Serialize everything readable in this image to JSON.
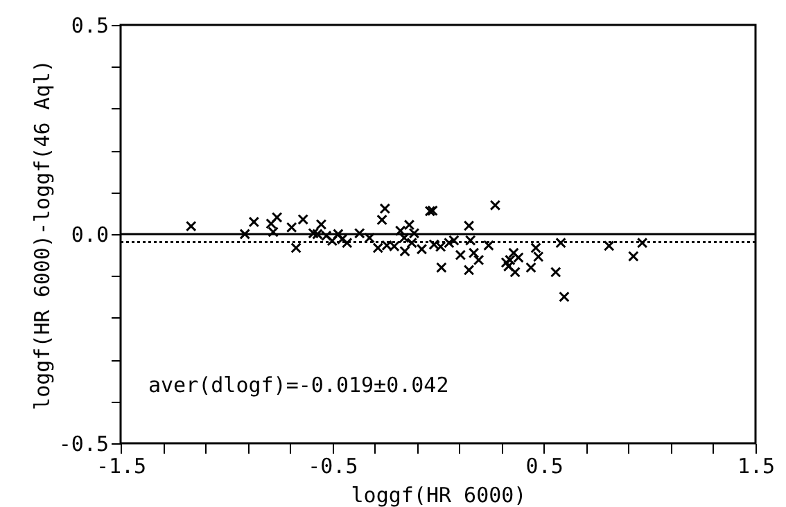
{
  "chart_data": {
    "type": "scatter",
    "xlabel": "loggf(HR 6000)",
    "ylabel": "loggf(HR 6000)-loggf(46 Aql)",
    "x": [
      -1.167,
      -0.913,
      -0.87,
      -0.789,
      -0.779,
      -0.761,
      -0.692,
      -0.671,
      -0.638,
      -0.589,
      -0.552,
      -0.57,
      -0.528,
      -0.5,
      -0.472,
      -0.453,
      -0.43,
      -0.371,
      -0.324,
      -0.265,
      -0.251,
      -0.284,
      -0.242,
      -0.207,
      -0.178,
      -0.16,
      -0.157,
      -0.136,
      -0.124,
      -0.113,
      -0.077,
      -0.038,
      -0.026,
      -0.019,
      0.012,
      0.016,
      0.052,
      0.075,
      0.106,
      0.146,
      0.146,
      0.153,
      0.169,
      0.192,
      0.239,
      0.27,
      0.322,
      0.34,
      0.333,
      0.357,
      0.364,
      0.38,
      0.439,
      0.462,
      0.474,
      0.556,
      0.58,
      0.596,
      0.808,
      0.923,
      0.965
    ],
    "series": [
      {
        "color": "#000000",
        "values": [
          0.019,
          0.0,
          0.029,
          0.025,
          0.005,
          0.04,
          0.016,
          -0.033,
          0.035,
          0.002,
          0.023,
          0.0,
          -0.004,
          -0.016,
          0.0,
          -0.012,
          -0.021,
          0.002,
          -0.009,
          0.034,
          0.061,
          -0.033,
          -0.027,
          -0.029,
          0.008,
          -0.009,
          -0.041,
          0.022,
          -0.021,
          0.002,
          -0.036,
          0.055,
          0.056,
          -0.025,
          -0.03,
          -0.08,
          -0.021,
          -0.015,
          -0.05,
          0.02,
          -0.086,
          -0.015,
          -0.045,
          -0.062,
          -0.027,
          0.069,
          -0.068,
          -0.062,
          -0.077,
          -0.045,
          -0.091,
          -0.056,
          -0.08,
          -0.033,
          -0.054,
          -0.091,
          -0.021,
          -0.15,
          -0.028,
          -0.053,
          -0.021
        ]
      }
    ],
    "marker": "cross",
    "grid": false,
    "xlim": [
      -1.5,
      1.5
    ],
    "xticks": [
      -1.5,
      {
        "value": -1.3,
        "label": null
      },
      {
        "value": -1.1,
        "label": null
      },
      {
        "value": -0.9,
        "label": null
      },
      {
        "value": -0.7,
        "label": null
      },
      -0.5,
      {
        "value": -0.3,
        "label": null
      },
      {
        "value": -0.1,
        "label": null
      },
      {
        "value": 0.1,
        "label": null
      },
      {
        "value": 0.3,
        "label": null
      },
      0.5,
      {
        "value": 0.7,
        "label": null
      },
      {
        "value": 0.9,
        "label": null
      },
      {
        "value": 1.1,
        "label": null
      },
      {
        "value": 1.3,
        "label": null
      },
      1.5
    ],
    "ylim": [
      -0.5,
      0.5
    ],
    "yticks": [
      -0.5,
      {
        "value": -0.4,
        "label": null
      },
      {
        "value": -0.3,
        "label": null
      },
      {
        "value": -0.2,
        "label": null
      },
      {
        "value": -0.1,
        "label": null
      },
      {
        "value": 0,
        "label": "0.0"
      },
      {
        "value": 0.1,
        "label": null
      },
      {
        "value": 0.2,
        "label": null
      },
      {
        "value": 0.3,
        "label": null
      },
      {
        "value": 0.4,
        "label": null
      },
      0.5
    ],
    "ref_lines": [
      {
        "axis": "y",
        "value": 0,
        "line_style": "solid",
        "color": "#000000"
      },
      {
        "axis": "y",
        "value": -0.019,
        "line_style": "dotted",
        "color": "#000000"
      }
    ],
    "annotations": [
      "aver(dlogf)=-0.019±0.042"
    ]
  }
}
